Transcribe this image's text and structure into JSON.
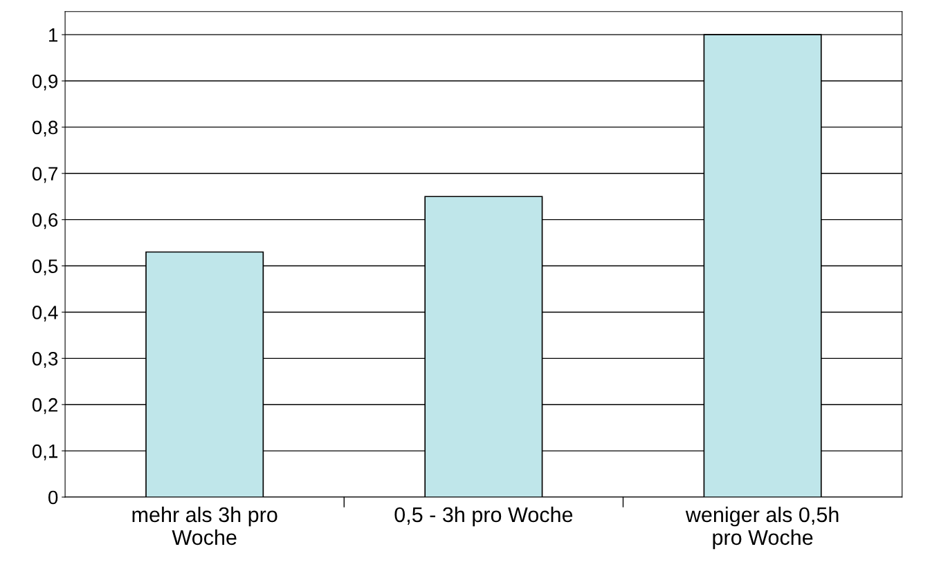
{
  "chart_data": {
    "type": "bar",
    "categories": [
      "mehr als 3h pro\nWoche",
      "0,5 - 3h pro Woche",
      "weniger als 0,5h\npro Woche"
    ],
    "values": [
      0.53,
      0.65,
      1.0
    ],
    "color": "#bfe6ea",
    "ylim": [
      0,
      1.05
    ],
    "yticks": [
      0,
      {
        "value": 0.1,
        "label": "0,1"
      },
      {
        "value": 0.2,
        "label": "0,2"
      },
      {
        "value": 0.3,
        "label": "0,3"
      },
      {
        "value": 0.4,
        "label": "0,4"
      },
      {
        "value": 0.5,
        "label": "0,5"
      },
      {
        "value": 0.6,
        "label": "0,6"
      },
      {
        "value": 0.7,
        "label": "0,7"
      },
      {
        "value": 0.8,
        "label": "0,8"
      },
      {
        "value": 0.9,
        "label": "0,9"
      },
      1
    ],
    "grid": "y"
  }
}
